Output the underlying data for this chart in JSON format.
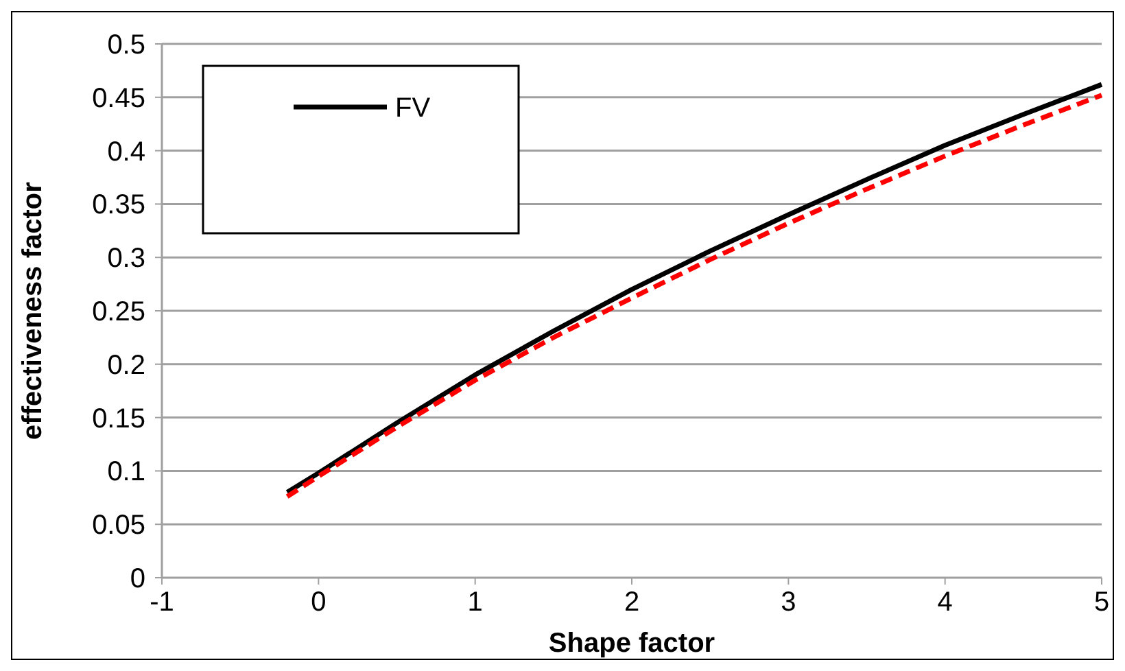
{
  "chart_data": {
    "type": "line",
    "xlabel": "Shape factor",
    "ylabel": "effectiveness factor",
    "xlim": [
      -1,
      5
    ],
    "xticks": [
      -1,
      0,
      1,
      2,
      3,
      4,
      5
    ],
    "ylim": [
      0,
      0.5
    ],
    "yticks": [
      0,
      0.05,
      0.1,
      0.15,
      0.2,
      0.25,
      0.3,
      0.35,
      0.4,
      0.45,
      0.5
    ],
    "grid": "y",
    "legend": "top left",
    "series": [
      {
        "name": "FV",
        "color": "#000000",
        "line_style": "solid",
        "x": [
          -0.2,
          0,
          0.5,
          1,
          1.5,
          2,
          2.5,
          3,
          3.5,
          4,
          4.5,
          5
        ],
        "values": [
          0.08,
          0.098,
          0.145,
          0.19,
          0.231,
          0.27,
          0.306,
          0.34,
          0.373,
          0.405,
          0.434,
          0.462
        ]
      },
      {
        "color": "#ff0000",
        "line_style": "dashed",
        "x": [
          -0.2,
          0,
          0.5,
          1,
          1.5,
          2,
          2.5,
          3,
          3.5,
          4,
          4.5,
          5
        ],
        "values": [
          0.076,
          0.095,
          0.141,
          0.185,
          0.225,
          0.262,
          0.298,
          0.332,
          0.364,
          0.395,
          0.424,
          0.452
        ]
      }
    ]
  }
}
